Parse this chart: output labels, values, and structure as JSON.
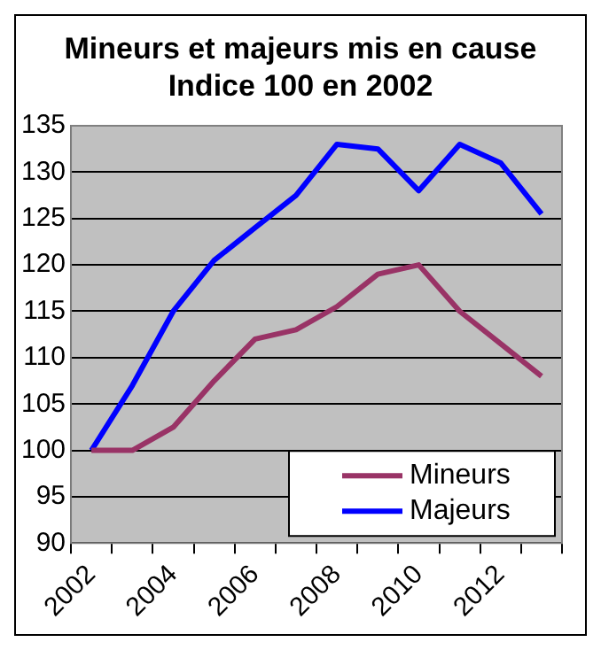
{
  "chart_data": {
    "type": "line",
    "title": "Mineurs et majeurs mis en cause  Indice 100 en 2002",
    "categories": [
      "2002",
      null,
      "2004",
      null,
      "2006",
      null,
      "2008",
      null,
      "2010",
      null,
      "2012",
      null
    ],
    "series": [
      {
        "name": "Mineurs",
        "color": "#993366",
        "values": [
          100,
          100,
          102.5,
          107.5,
          112,
          113,
          115.5,
          119,
          120,
          115,
          111.5,
          108
        ]
      },
      {
        "name": "Majeurs",
        "color": "#0000ff",
        "values": [
          100,
          107,
          115,
          120.5,
          124,
          127.5,
          133,
          132.5,
          128,
          133,
          131,
          125.5
        ]
      }
    ],
    "ylim": [
      90,
      135
    ],
    "yticks": [
      90,
      95,
      100,
      105,
      110,
      115,
      120,
      125,
      130,
      135
    ],
    "grid": "y",
    "legend": "bottom right",
    "marker": "none",
    "line_style": "solid"
  }
}
